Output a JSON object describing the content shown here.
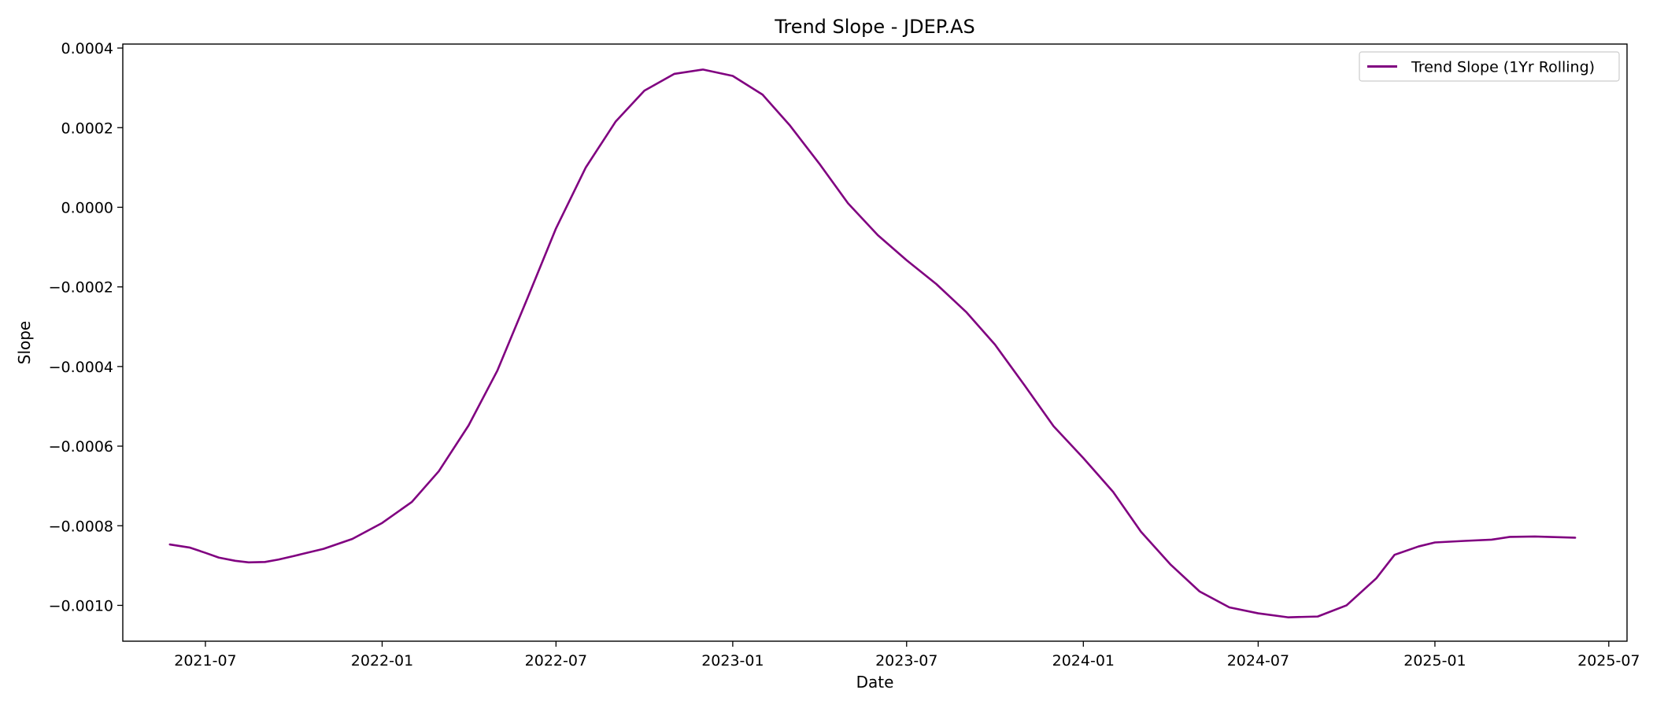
{
  "chart_data": {
    "type": "line",
    "title": "Trend Slope - JDEP.AS",
    "xlabel": "Date",
    "ylabel": "Slope",
    "xlim": [
      "2021-04-06",
      "2025-07-20"
    ],
    "ylim": [
      -0.00109,
      0.00041
    ],
    "grid": false,
    "legend_position": "top-right",
    "x_ticks": [
      "2021-07-01",
      "2022-01-01",
      "2022-07-01",
      "2023-01-01",
      "2023-07-01",
      "2024-01-01",
      "2024-07-01",
      "2025-01-01",
      "2025-07-01"
    ],
    "x_tick_labels": [
      "2021-07",
      "2022-01",
      "2022-07",
      "2023-01",
      "2023-07",
      "2024-01",
      "2024-07",
      "2025-01",
      "2025-07"
    ],
    "y_ticks": [
      -0.001,
      -0.0008,
      -0.0006,
      -0.0004,
      -0.0002,
      0.0,
      0.0002,
      0.0004
    ],
    "y_tick_labels": [
      "−0.0010",
      "−0.0008",
      "−0.0006",
      "−0.0004",
      "−0.0002",
      "0.0000",
      "0.0002",
      "0.0004"
    ],
    "series": [
      {
        "name": "Trend Slope (1Yr Rolling)",
        "color": "#800080",
        "points": [
          [
            "2021-05-25",
            -0.000847
          ],
          [
            "2021-06-15",
            -0.000855
          ],
          [
            "2021-07-01",
            -0.000868
          ],
          [
            "2021-07-15",
            -0.00088
          ],
          [
            "2021-08-01",
            -0.000888
          ],
          [
            "2021-08-15",
            -0.000892
          ],
          [
            "2021-09-01",
            -0.000891
          ],
          [
            "2021-09-15",
            -0.000885
          ],
          [
            "2021-10-01",
            -0.000876
          ],
          [
            "2021-11-01",
            -0.000858
          ],
          [
            "2021-12-01",
            -0.000833
          ],
          [
            "2022-01-01",
            -0.000793
          ],
          [
            "2022-02-01",
            -0.00074
          ],
          [
            "2022-03-01",
            -0.000663
          ],
          [
            "2022-04-01",
            -0.000548
          ],
          [
            "2022-05-01",
            -0.00041
          ],
          [
            "2022-06-01",
            -0.00023
          ],
          [
            "2022-07-01",
            -5.3e-05
          ],
          [
            "2022-08-01",
            0.0001
          ],
          [
            "2022-09-01",
            0.000215
          ],
          [
            "2022-10-01",
            0.000293
          ],
          [
            "2022-11-01",
            0.000335
          ],
          [
            "2022-12-01",
            0.000346
          ],
          [
            "2023-01-01",
            0.00033
          ],
          [
            "2023-02-01",
            0.000283
          ],
          [
            "2023-03-01",
            0.000207
          ],
          [
            "2023-04-01",
            0.00011
          ],
          [
            "2023-05-01",
            1e-05
          ],
          [
            "2023-06-01",
            -7e-05
          ],
          [
            "2023-07-01",
            -0.000133
          ],
          [
            "2023-08-01",
            -0.000193
          ],
          [
            "2023-09-01",
            -0.000263
          ],
          [
            "2023-10-01",
            -0.000345
          ],
          [
            "2023-11-01",
            -0.000448
          ],
          [
            "2023-12-01",
            -0.00055
          ],
          [
            "2024-01-01",
            -0.00063
          ],
          [
            "2024-02-01",
            -0.000715
          ],
          [
            "2024-03-01",
            -0.000815
          ],
          [
            "2024-04-01",
            -0.000898
          ],
          [
            "2024-05-01",
            -0.000965
          ],
          [
            "2024-06-01",
            -0.001005
          ],
          [
            "2024-07-01",
            -0.00102
          ],
          [
            "2024-08-01",
            -0.00103
          ],
          [
            "2024-09-01",
            -0.001028
          ],
          [
            "2024-10-01",
            -0.001
          ],
          [
            "2024-11-01",
            -0.000932
          ],
          [
            "2024-11-20",
            -0.000873
          ],
          [
            "2024-12-15",
            -0.000852
          ],
          [
            "2025-01-01",
            -0.000842
          ],
          [
            "2025-02-01",
            -0.000838
          ],
          [
            "2025-03-01",
            -0.000835
          ],
          [
            "2025-03-20",
            -0.000828
          ],
          [
            "2025-04-15",
            -0.000827
          ],
          [
            "2025-05-27",
            -0.00083
          ]
        ]
      }
    ]
  }
}
